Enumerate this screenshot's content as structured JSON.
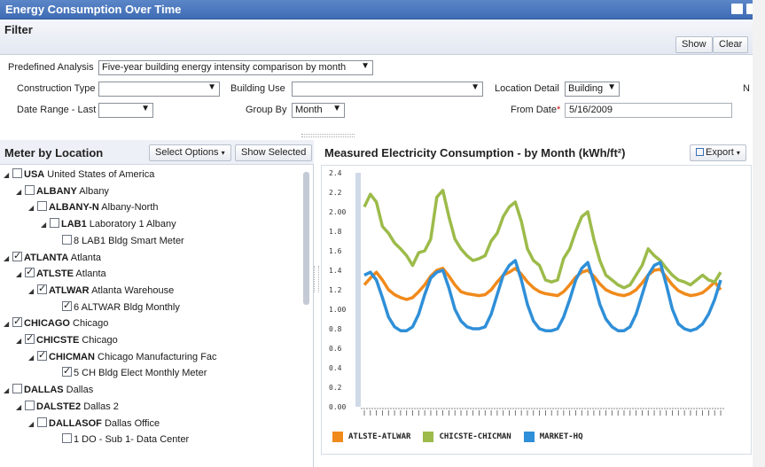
{
  "window": {
    "title": "Energy Consumption Over Time"
  },
  "filter": {
    "title": "Filter",
    "show_label": "Show",
    "clear_label": "Clear",
    "predefined_label": "Predefined Analysis",
    "predefined_value": "Five-year building energy intensity comparison by month",
    "construction_label": "Construction Type",
    "construction_value": "",
    "building_use_label": "Building Use",
    "building_use_value": "",
    "location_detail_label": "Location Detail",
    "location_detail_value": "Building",
    "extra_label": "N",
    "date_range_label": "Date Range - Last",
    "date_range_value": "",
    "group_by_label": "Group By",
    "group_by_value": "Month",
    "from_date_label": "From Date",
    "from_date_required": "*",
    "from_date_value": "5/16/2009"
  },
  "meter_panel": {
    "title": "Meter by Location",
    "select_options_label": "Select Options",
    "select_options_caret": "▾",
    "show_selected_label": "Show Selected",
    "tree": [
      {
        "code": "USA",
        "name": "United States of America",
        "level": 0,
        "arrow": "◢",
        "checked": false
      },
      {
        "code": "ALBANY",
        "name": "Albany",
        "level": 1,
        "arrow": "◢",
        "checked": false
      },
      {
        "code": "ALBANY-N",
        "name": "Albany-North",
        "level": 2,
        "arrow": "◢",
        "checked": false
      },
      {
        "code": "LAB1",
        "name": "Laboratory 1 Albany",
        "level": 3,
        "arrow": "◢",
        "checked": false
      },
      {
        "code": "",
        "name": "8 LAB1 Bldg Smart Meter",
        "level": 4,
        "arrow": "",
        "checked": false
      },
      {
        "code": "ATLANTA",
        "name": "Atlanta",
        "level": 0,
        "arrow": "◢",
        "checked": true
      },
      {
        "code": "ATLSTE",
        "name": "Atlanta",
        "level": 1,
        "arrow": "◢",
        "checked": true
      },
      {
        "code": "ATLWAR",
        "name": "Atlanta Warehouse",
        "level": 2,
        "arrow": "◢",
        "checked": true
      },
      {
        "code": "",
        "name": "6 ALTWAR Bldg Monthly",
        "level": 4,
        "arrow": "",
        "checked": true
      },
      {
        "code": "CHICAGO",
        "name": "Chicago",
        "level": 0,
        "arrow": "◢",
        "checked": true
      },
      {
        "code": "CHICSTE",
        "name": "Chicago",
        "level": 1,
        "arrow": "◢",
        "checked": true
      },
      {
        "code": "CHICMAN",
        "name": "Chicago Manufacturing Fac",
        "level": 2,
        "arrow": "◢",
        "checked": true
      },
      {
        "code": "",
        "name": "5 CH Bldg Elect Monthly Meter",
        "level": 4,
        "arrow": "",
        "checked": true
      },
      {
        "code": "DALLAS",
        "name": "Dallas",
        "level": 0,
        "arrow": "◢",
        "checked": false
      },
      {
        "code": "DALSTE2",
        "name": "Dallas 2",
        "level": 1,
        "arrow": "◢",
        "checked": false
      },
      {
        "code": "DALLASOF",
        "name": "Dallas Office",
        "level": 2,
        "arrow": "◢",
        "checked": false
      },
      {
        "code": "",
        "name": "1 DO - Sub 1- Data Center",
        "level": 4,
        "arrow": "",
        "checked": false
      }
    ]
  },
  "chart_panel": {
    "title": "Measured Electricity Consumption - by Month (kWh/ft²)",
    "export_label": "Export",
    "export_caret": "▾"
  },
  "chart_data": {
    "type": "line",
    "title": "Measured Electricity Consumption - by Month (kWh/ft²)",
    "xlabel": "",
    "ylabel": "",
    "ylim": [
      0,
      2.4
    ],
    "yticks": [
      "0.00",
      "0.2",
      "0.4",
      "0.6",
      "0.8",
      "1.00",
      "1.2",
      "1.4",
      "1.6",
      "1.8",
      "2.00",
      "2.2",
      "2.4"
    ],
    "grid": false,
    "legend_position": "bottom",
    "series": [
      {
        "name": "ATLSTE-ATLWAR",
        "color": "#f08a1c",
        "values": [
          1.25,
          1.32,
          1.38,
          1.3,
          1.2,
          1.15,
          1.12,
          1.1,
          1.12,
          1.18,
          1.25,
          1.34,
          1.4,
          1.42,
          1.34,
          1.25,
          1.18,
          1.16,
          1.15,
          1.14,
          1.15,
          1.2,
          1.28,
          1.35,
          1.38,
          1.42,
          1.36,
          1.28,
          1.22,
          1.18,
          1.16,
          1.15,
          1.14,
          1.18,
          1.25,
          1.33,
          1.38,
          1.4,
          1.34,
          1.26,
          1.2,
          1.17,
          1.15,
          1.14,
          1.16,
          1.2,
          1.27,
          1.35,
          1.4,
          1.41,
          1.33,
          1.25,
          1.19,
          1.16,
          1.14,
          1.15,
          1.17,
          1.22,
          1.28,
          1.2
        ]
      },
      {
        "name": "CHICSTE-CHICMAN",
        "color": "#9cbb4a",
        "values": [
          2.05,
          2.18,
          2.1,
          1.85,
          1.78,
          1.68,
          1.62,
          1.55,
          1.45,
          1.58,
          1.6,
          1.72,
          2.15,
          2.22,
          1.95,
          1.72,
          1.62,
          1.55,
          1.5,
          1.52,
          1.55,
          1.7,
          1.78,
          1.95,
          2.05,
          2.1,
          1.9,
          1.62,
          1.5,
          1.45,
          1.3,
          1.28,
          1.3,
          1.52,
          1.62,
          1.8,
          1.95,
          2.0,
          1.72,
          1.5,
          1.35,
          1.3,
          1.25,
          1.22,
          1.25,
          1.35,
          1.45,
          1.62,
          1.55,
          1.5,
          1.42,
          1.35,
          1.3,
          1.28,
          1.25,
          1.3,
          1.35,
          1.3,
          1.28,
          1.38
        ]
      },
      {
        "name": "MARKET-HQ",
        "color": "#2f8fd8",
        "values": [
          1.35,
          1.38,
          1.3,
          1.12,
          0.92,
          0.82,
          0.78,
          0.78,
          0.82,
          0.95,
          1.15,
          1.32,
          1.38,
          1.4,
          1.22,
          1.0,
          0.88,
          0.82,
          0.8,
          0.8,
          0.82,
          0.95,
          1.15,
          1.35,
          1.45,
          1.5,
          1.3,
          1.05,
          0.88,
          0.8,
          0.78,
          0.78,
          0.8,
          0.92,
          1.1,
          1.3,
          1.42,
          1.48,
          1.28,
          1.05,
          0.9,
          0.82,
          0.78,
          0.78,
          0.82,
          0.95,
          1.15,
          1.35,
          1.45,
          1.48,
          1.25,
          1.0,
          0.85,
          0.8,
          0.78,
          0.8,
          0.85,
          0.95,
          1.1,
          1.3
        ]
      }
    ]
  }
}
